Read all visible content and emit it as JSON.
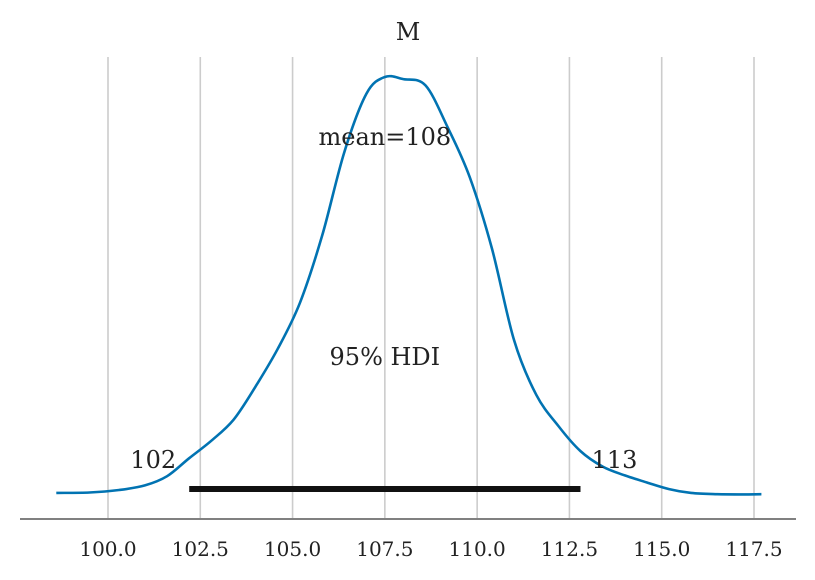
{
  "chart_data": {
    "type": "line",
    "title": "M",
    "xlabel": "",
    "ylabel": "",
    "xlim": [
      98.5,
      118
    ],
    "xticks": [
      100.0,
      102.5,
      105.0,
      107.5,
      110.0,
      112.5,
      115.0,
      117.5
    ],
    "xtick_labels": [
      "100.0",
      "102.5",
      "105.0",
      "107.5",
      "110.0",
      "112.5",
      "115.0",
      "117.5"
    ],
    "grid": "vertical",
    "series": [
      {
        "color": "#0173b2",
        "x": [
          98.6,
          99.5,
          100.3,
          101.0,
          101.6,
          102.2,
          102.8,
          103.4,
          104.0,
          104.6,
          105.2,
          105.8,
          106.4,
          107.0,
          107.5,
          108.0,
          108.6,
          109.2,
          109.8,
          110.4,
          111.0,
          111.6,
          112.2,
          112.8,
          113.4,
          114.0,
          114.6,
          115.2,
          115.8,
          116.5,
          117.2,
          117.7
        ],
        "y": [
          0.005,
          0.006,
          0.012,
          0.023,
          0.045,
          0.088,
          0.13,
          0.18,
          0.26,
          0.35,
          0.46,
          0.62,
          0.82,
          0.96,
          1.0,
          0.995,
          0.98,
          0.88,
          0.76,
          0.59,
          0.37,
          0.24,
          0.165,
          0.105,
          0.068,
          0.047,
          0.03,
          0.014,
          0.005,
          0.002,
          0.0015,
          0.002
        ]
      }
    ],
    "annotations": {
      "mean_label": "mean=108",
      "hdi_label": "95% HDI",
      "hdi_low": 102.2,
      "hdi_high": 112.8,
      "hdi_low_label": "102",
      "hdi_high_label": "113"
    }
  }
}
